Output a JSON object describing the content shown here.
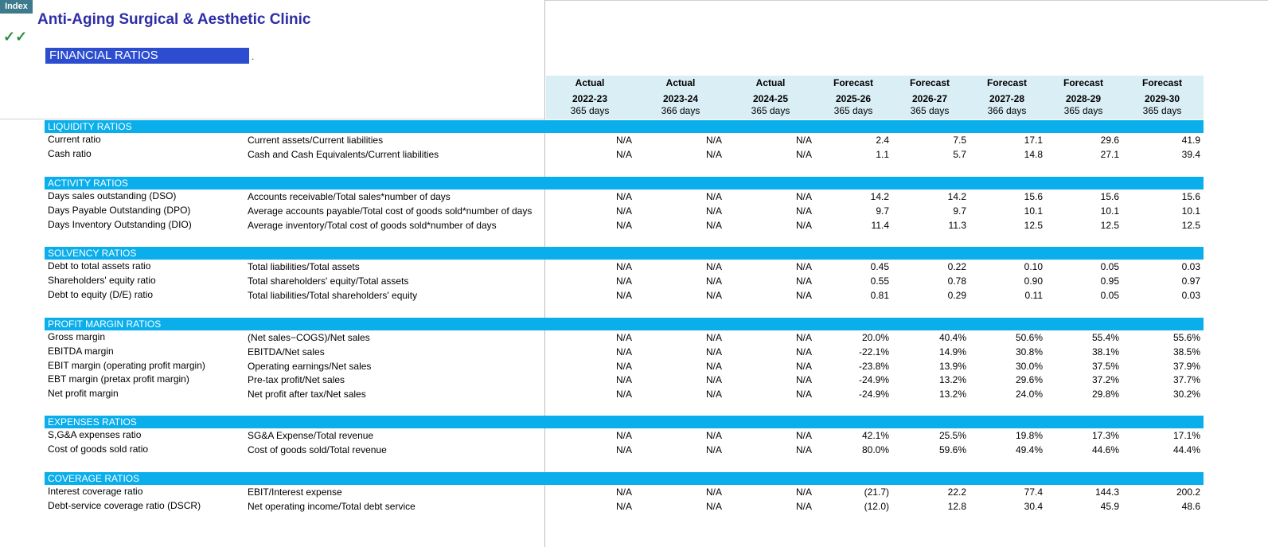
{
  "index_button": "Index",
  "checkmark": "✓✓",
  "title": "Anti-Aging Surgical & Aesthetic Clinic",
  "subtitle": "FINANCIAL RATIOS",
  "dot": ".",
  "columns": [
    {
      "type": "Actual",
      "year": "2022-23",
      "days": "365 days"
    },
    {
      "type": "Actual",
      "year": "2023-24",
      "days": "366 days"
    },
    {
      "type": "Actual",
      "year": "2024-25",
      "days": "365 days"
    },
    {
      "type": "Forecast",
      "year": "2025-26",
      "days": "365 days"
    },
    {
      "type": "Forecast",
      "year": "2026-27",
      "days": "365 days"
    },
    {
      "type": "Forecast",
      "year": "2027-28",
      "days": "366 days"
    },
    {
      "type": "Forecast",
      "year": "2028-29",
      "days": "365 days"
    },
    {
      "type": "Forecast",
      "year": "2029-30",
      "days": "365 days"
    }
  ],
  "sections": [
    {
      "title": "LIQUIDITY RATIOS",
      "rows": [
        {
          "label": "Current ratio",
          "formula": "Current assets/Current liabilities",
          "values": [
            "N/A",
            "N/A",
            "N/A",
            "2.4",
            "7.5",
            "17.1",
            "29.6",
            "41.9"
          ]
        },
        {
          "label": "Cash ratio",
          "formula": "Cash and Cash Equivalents/Current liabilities",
          "values": [
            "N/A",
            "N/A",
            "N/A",
            "1.1",
            "5.7",
            "14.8",
            "27.1",
            "39.4"
          ]
        }
      ]
    },
    {
      "title": "ACTIVITY RATIOS",
      "rows": [
        {
          "label": "Days sales outstanding (DSO)",
          "formula": "Accounts receivable/Total sales*number of days",
          "values": [
            "N/A",
            "N/A",
            "N/A",
            "14.2",
            "14.2",
            "15.6",
            "15.6",
            "15.6"
          ]
        },
        {
          "label": "Days Payable Outstanding (DPO)",
          "formula": "Average accounts payable/Total cost of goods sold*number of days",
          "values": [
            "N/A",
            "N/A",
            "N/A",
            "9.7",
            "9.7",
            "10.1",
            "10.1",
            "10.1"
          ]
        },
        {
          "label": "Days Inventory Outstanding (DIO)",
          "formula": "Average inventory/Total cost of goods sold*number of days",
          "values": [
            "N/A",
            "N/A",
            "N/A",
            "11.4",
            "11.3",
            "12.5",
            "12.5",
            "12.5"
          ]
        }
      ]
    },
    {
      "title": "SOLVENCY RATIOS",
      "rows": [
        {
          "label": "Debt to total assets ratio",
          "formula": "Total liabilities/Total assets",
          "values": [
            "N/A",
            "N/A",
            "N/A",
            "0.45",
            "0.22",
            "0.10",
            "0.05",
            "0.03"
          ]
        },
        {
          "label": "Shareholders' equity ratio",
          "formula": "Total shareholders' equity/Total assets",
          "values": [
            "N/A",
            "N/A",
            "N/A",
            "0.55",
            "0.78",
            "0.90",
            "0.95",
            "0.97"
          ]
        },
        {
          "label": "Debt to equity (D/E) ratio",
          "formula": "Total liabilities/Total shareholders' equity",
          "values": [
            "N/A",
            "N/A",
            "N/A",
            "0.81",
            "0.29",
            "0.11",
            "0.05",
            "0.03"
          ]
        }
      ]
    },
    {
      "title": "PROFIT MARGIN RATIOS",
      "rows": [
        {
          "label": "Gross margin",
          "formula": "(Net sales−COGS)/Net sales",
          "values": [
            "N/A",
            "N/A",
            "N/A",
            "20.0%",
            "40.4%",
            "50.6%",
            "55.4%",
            "55.6%"
          ]
        },
        {
          "label": "EBITDA margin",
          "formula": "EBITDA/Net sales",
          "values": [
            "N/A",
            "N/A",
            "N/A",
            "-22.1%",
            "14.9%",
            "30.8%",
            "38.1%",
            "38.5%"
          ]
        },
        {
          "label": "EBIT margin (operating profit margin)",
          "formula": "Operating earnings/Net sales",
          "values": [
            "N/A",
            "N/A",
            "N/A",
            "-23.8%",
            "13.9%",
            "30.0%",
            "37.5%",
            "37.9%"
          ]
        },
        {
          "label": "EBT margin (pretax profit margin)",
          "formula": "Pre-tax profit/Net sales",
          "values": [
            "N/A",
            "N/A",
            "N/A",
            "-24.9%",
            "13.2%",
            "29.6%",
            "37.2%",
            "37.7%"
          ]
        },
        {
          "label": "Net profit margin",
          "formula": "Net profit after tax/Net sales",
          "values": [
            "N/A",
            "N/A",
            "N/A",
            "-24.9%",
            "13.2%",
            "24.0%",
            "29.8%",
            "30.2%"
          ]
        }
      ]
    },
    {
      "title": "EXPENSES RATIOS",
      "rows": [
        {
          "label": "S,G&A expenses ratio",
          "formula": "SG&A Expense/Total revenue",
          "values": [
            "N/A",
            "N/A",
            "N/A",
            "42.1%",
            "25.5%",
            "19.8%",
            "17.3%",
            "17.1%"
          ]
        },
        {
          "label": "Cost of goods sold ratio",
          "formula": "Cost of goods sold/Total revenue",
          "values": [
            "N/A",
            "N/A",
            "N/A",
            "80.0%",
            "59.6%",
            "49.4%",
            "44.6%",
            "44.4%"
          ]
        }
      ]
    },
    {
      "title": "COVERAGE RATIOS",
      "rows": [
        {
          "label": "Interest coverage ratio",
          "formula": "EBIT/Interest expense",
          "values": [
            "N/A",
            "N/A",
            "N/A",
            "(21.7)",
            "22.2",
            "77.4",
            "144.3",
            "200.2"
          ]
        },
        {
          "label": "Debt-service coverage ratio (DSCR)",
          "formula": "Net operating income/Total debt service",
          "values": [
            "N/A",
            "N/A",
            "N/A",
            "(12.0)",
            "12.8",
            "30.4",
            "45.9",
            "48.6"
          ]
        }
      ]
    }
  ]
}
